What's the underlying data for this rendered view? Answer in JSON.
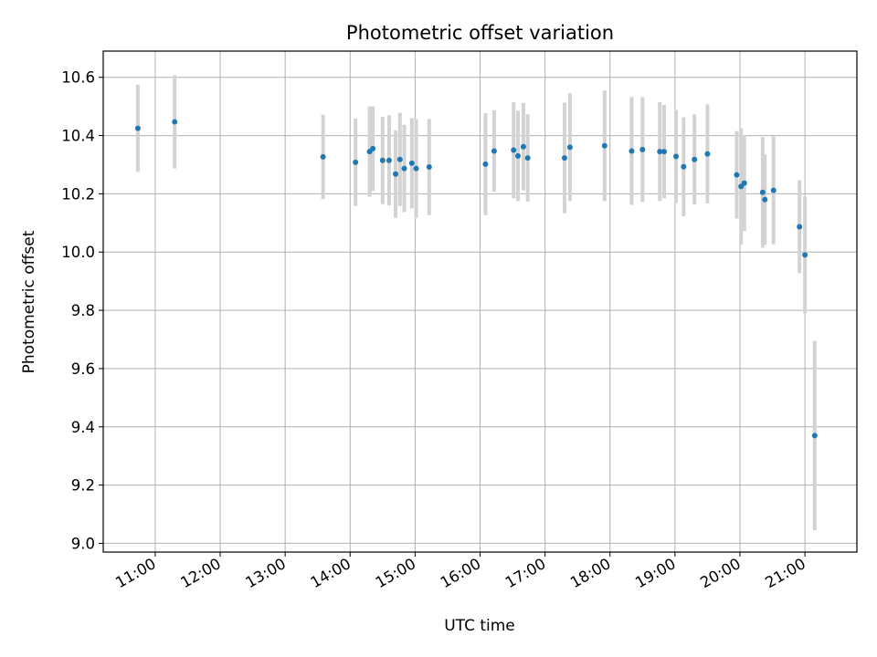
{
  "chart_data": {
    "type": "scatter",
    "title": "Photometric offset variation",
    "xlabel": "UTC time",
    "ylabel": "Photometric offset",
    "x_ticks": [
      "11:00",
      "12:00",
      "13:00",
      "14:00",
      "15:00",
      "16:00",
      "17:00",
      "18:00",
      "19:00",
      "20:00",
      "21:00"
    ],
    "y_ticks": [
      "9.0",
      "9.2",
      "9.4",
      "9.6",
      "9.8",
      "10.0",
      "10.2",
      "10.4",
      "10.6"
    ],
    "xlim": [
      "10:12",
      "21:48"
    ],
    "ylim": [
      8.97,
      10.69
    ],
    "grid": true,
    "point_color": "#1f77b4",
    "errorbar_color": "#d3d3d3",
    "points": [
      {
        "x": "10:44",
        "y": 10.425,
        "err": 0.15
      },
      {
        "x": "11:18",
        "y": 10.447,
        "err": 0.16
      },
      {
        "x": "13:35",
        "y": 10.327,
        "err": 0.145
      },
      {
        "x": "14:05",
        "y": 10.308,
        "err": 0.15
      },
      {
        "x": "14:18",
        "y": 10.345,
        "err": 0.155
      },
      {
        "x": "14:21",
        "y": 10.355,
        "err": 0.145
      },
      {
        "x": "14:30",
        "y": 10.315,
        "err": 0.15
      },
      {
        "x": "14:36",
        "y": 10.315,
        "err": 0.155
      },
      {
        "x": "14:42",
        "y": 10.268,
        "err": 0.15
      },
      {
        "x": "14:46",
        "y": 10.318,
        "err": 0.16
      },
      {
        "x": "14:50",
        "y": 10.287,
        "err": 0.15
      },
      {
        "x": "14:57",
        "y": 10.305,
        "err": 0.155
      },
      {
        "x": "15:01",
        "y": 10.287,
        "err": 0.17
      },
      {
        "x": "15:13",
        "y": 10.292,
        "err": 0.165
      },
      {
        "x": "16:05",
        "y": 10.302,
        "err": 0.175
      },
      {
        "x": "16:13",
        "y": 10.347,
        "err": 0.14
      },
      {
        "x": "16:31",
        "y": 10.35,
        "err": 0.165
      },
      {
        "x": "16:35",
        "y": 10.33,
        "err": 0.155
      },
      {
        "x": "16:40",
        "y": 10.362,
        "err": 0.15
      },
      {
        "x": "16:44",
        "y": 10.323,
        "err": 0.15
      },
      {
        "x": "17:18",
        "y": 10.323,
        "err": 0.19
      },
      {
        "x": "17:23",
        "y": 10.36,
        "err": 0.185
      },
      {
        "x": "17:55",
        "y": 10.365,
        "err": 0.19
      },
      {
        "x": "18:20",
        "y": 10.347,
        "err": 0.185
      },
      {
        "x": "18:30",
        "y": 10.352,
        "err": 0.18
      },
      {
        "x": "18:46",
        "y": 10.345,
        "err": 0.17
      },
      {
        "x": "18:50",
        "y": 10.345,
        "err": 0.16
      },
      {
        "x": "19:01",
        "y": 10.328,
        "err": 0.16
      },
      {
        "x": "19:08",
        "y": 10.293,
        "err": 0.17
      },
      {
        "x": "19:18",
        "y": 10.318,
        "err": 0.155
      },
      {
        "x": "19:30",
        "y": 10.337,
        "err": 0.17
      },
      {
        "x": "19:57",
        "y": 10.265,
        "err": 0.15
      },
      {
        "x": "20:01",
        "y": 10.225,
        "err": 0.2
      },
      {
        "x": "20:04",
        "y": 10.237,
        "err": 0.165
      },
      {
        "x": "20:21",
        "y": 10.205,
        "err": 0.19
      },
      {
        "x": "20:23",
        "y": 10.18,
        "err": 0.155
      },
      {
        "x": "20:31",
        "y": 10.212,
        "err": 0.185
      },
      {
        "x": "20:55",
        "y": 10.087,
        "err": 0.16
      },
      {
        "x": "21:00",
        "y": 9.99,
        "err": 0.2
      },
      {
        "x": "21:09",
        "y": 9.37,
        "err": 0.325
      }
    ]
  }
}
